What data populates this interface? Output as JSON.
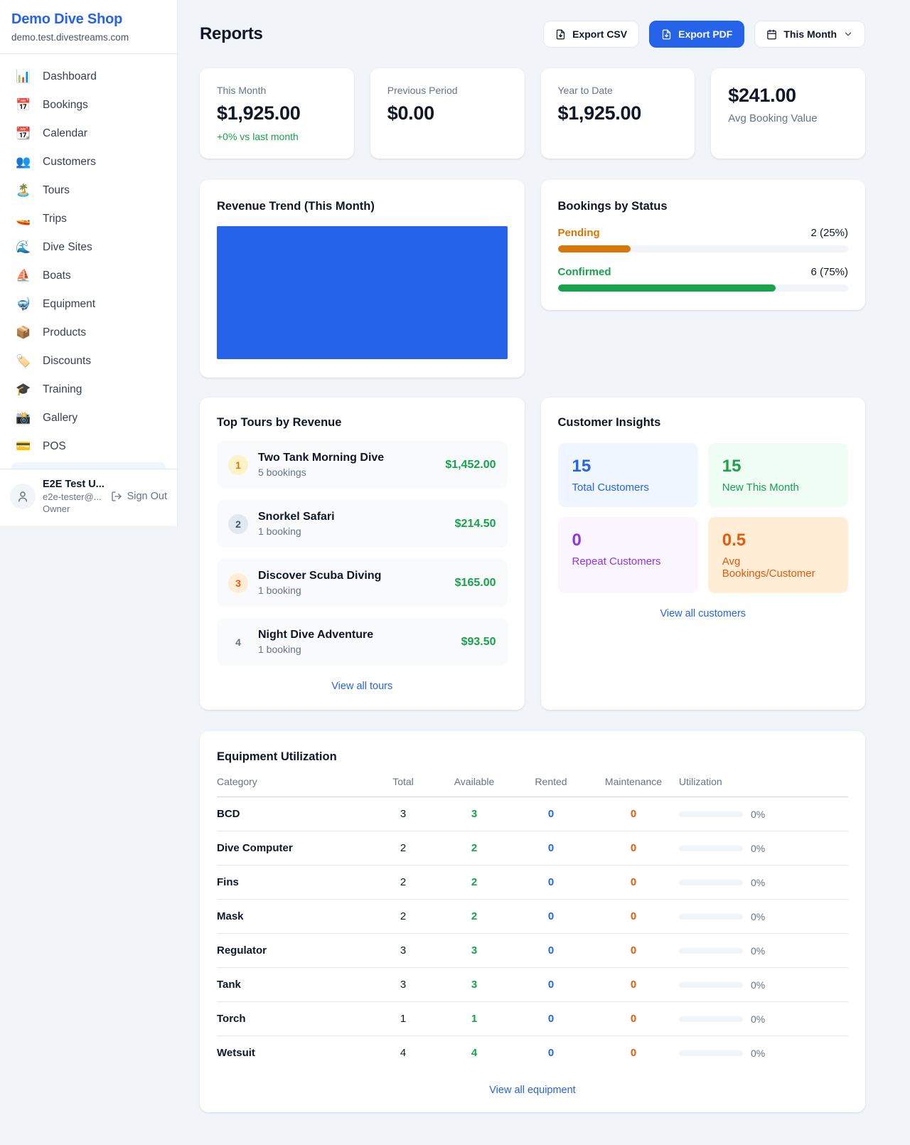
{
  "colors": {
    "accent_blue": "#2563eb",
    "money_green": "#16a34a",
    "pending_orange": "#d97706",
    "maintenance_orange": "#ea580c",
    "repeat_purple": "#9333ea",
    "page_bg": "#f1f5f9"
  },
  "sidebar": {
    "shop_name": "Demo Dive Shop",
    "shop_domain": "demo.test.divestreams.com",
    "items": [
      {
        "icon": "📊",
        "label": "Dashboard"
      },
      {
        "icon": "📅",
        "label": "Bookings"
      },
      {
        "icon": "📆",
        "label": "Calendar"
      },
      {
        "icon": "👥",
        "label": "Customers"
      },
      {
        "icon": "🏝️",
        "label": "Tours"
      },
      {
        "icon": "🚤",
        "label": "Trips"
      },
      {
        "icon": "🌊",
        "label": "Dive Sites"
      },
      {
        "icon": "⛵",
        "label": "Boats"
      },
      {
        "icon": "🤿",
        "label": "Equipment"
      },
      {
        "icon": "📦",
        "label": "Products"
      },
      {
        "icon": "🏷️",
        "label": "Discounts"
      },
      {
        "icon": "🎓",
        "label": "Training"
      },
      {
        "icon": "📸",
        "label": "Gallery"
      },
      {
        "icon": "💳",
        "label": "POS"
      }
    ],
    "user": {
      "name": "E2E Test U...",
      "email": "e2e-tester@...",
      "role": "Owner",
      "sign_out_label": "Sign Out"
    }
  },
  "header": {
    "title": "Reports",
    "export_csv_label": "Export CSV",
    "export_pdf_label": "Export PDF",
    "period_selected": "This Month"
  },
  "stats": [
    {
      "label": "This Month",
      "value": "$1,925.00",
      "sub": "+0% vs last month"
    },
    {
      "label": "Previous Period",
      "value": "$0.00"
    },
    {
      "label": "Year to Date",
      "value": "$1,925.00"
    },
    {
      "label": "Avg Booking Value",
      "value": "$241.00"
    }
  ],
  "revenue_trend": {
    "title": "Revenue Trend (This Month)"
  },
  "chart_data": [
    {
      "type": "bar",
      "title": "Revenue Trend (This Month)",
      "categories": [
        "This Month"
      ],
      "values": [
        1925
      ],
      "xlabel": "",
      "ylabel": "",
      "notes": "single full-width solid blue bar, no axes or tick labels visible",
      "bar_color": "#2563eb"
    },
    {
      "type": "bar",
      "title": "Bookings by Status",
      "categories": [
        "Pending",
        "Confirmed"
      ],
      "values": [
        2,
        6
      ],
      "percentages": [
        25,
        75
      ],
      "notes": "horizontal progress bars with counts and percentages"
    }
  ],
  "bookings_by_status": {
    "title": "Bookings by Status",
    "rows": [
      {
        "label": "Pending",
        "count_text": "2 (25%)",
        "pct": 25
      },
      {
        "label": "Confirmed",
        "count_text": "6 (75%)",
        "pct": 75
      }
    ]
  },
  "top_tours": {
    "title": "Top Tours by Revenue",
    "rows": [
      {
        "rank": "1",
        "name": "Two Tank Morning Dive",
        "bookings": "5 bookings",
        "revenue": "$1,452.00"
      },
      {
        "rank": "2",
        "name": "Snorkel Safari",
        "bookings": "1 booking",
        "revenue": "$214.50"
      },
      {
        "rank": "3",
        "name": "Discover Scuba Diving",
        "bookings": "1 booking",
        "revenue": "$165.00"
      },
      {
        "rank": "4",
        "name": "Night Dive Adventure",
        "bookings": "1 booking",
        "revenue": "$93.50"
      }
    ],
    "view_all": "View all tours"
  },
  "customer_insights": {
    "title": "Customer Insights",
    "tiles": [
      {
        "value": "15",
        "label": "Total Customers"
      },
      {
        "value": "15",
        "label": "New This Month"
      },
      {
        "value": "0",
        "label": "Repeat Customers"
      },
      {
        "value": "0.5",
        "label": "Avg Bookings/Customer"
      }
    ],
    "view_all": "View all customers"
  },
  "equipment": {
    "title": "Equipment Utilization",
    "columns": [
      "Category",
      "Total",
      "Available",
      "Rented",
      "Maintenance",
      "Utilization"
    ],
    "rows": [
      {
        "category": "BCD",
        "total": "3",
        "available": "3",
        "rented": "0",
        "maintenance": "0",
        "utilization": "0%"
      },
      {
        "category": "Dive Computer",
        "total": "2",
        "available": "2",
        "rented": "0",
        "maintenance": "0",
        "utilization": "0%"
      },
      {
        "category": "Fins",
        "total": "2",
        "available": "2",
        "rented": "0",
        "maintenance": "0",
        "utilization": "0%"
      },
      {
        "category": "Mask",
        "total": "2",
        "available": "2",
        "rented": "0",
        "maintenance": "0",
        "utilization": "0%"
      },
      {
        "category": "Regulator",
        "total": "3",
        "available": "3",
        "rented": "0",
        "maintenance": "0",
        "utilization": "0%"
      },
      {
        "category": "Tank",
        "total": "3",
        "available": "3",
        "rented": "0",
        "maintenance": "0",
        "utilization": "0%"
      },
      {
        "category": "Torch",
        "total": "1",
        "available": "1",
        "rented": "0",
        "maintenance": "0",
        "utilization": "0%"
      },
      {
        "category": "Wetsuit",
        "total": "4",
        "available": "4",
        "rented": "0",
        "maintenance": "0",
        "utilization": "0%"
      }
    ],
    "view_all": "View all equipment"
  }
}
